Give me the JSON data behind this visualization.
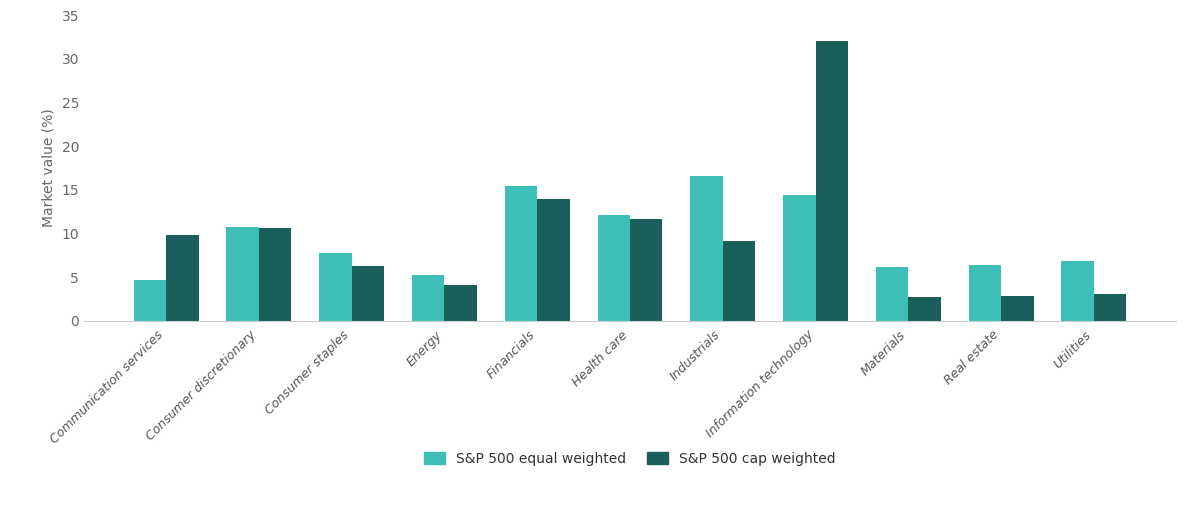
{
  "categories": [
    "Communication services",
    "Consumer discretionary",
    "Consumer staples",
    "Energy",
    "Financials",
    "Health care",
    "Industrials",
    "Information technology",
    "Materials",
    "Real estate",
    "Utilities"
  ],
  "equal_weighted": [
    4.7,
    10.7,
    7.8,
    5.2,
    15.4,
    12.1,
    16.6,
    14.4,
    6.2,
    6.4,
    6.8
  ],
  "cap_weighted": [
    9.8,
    10.6,
    6.3,
    4.1,
    13.9,
    11.7,
    9.1,
    32.1,
    2.7,
    2.8,
    3.1
  ],
  "equal_color": "#3dbfb8",
  "cap_color": "#1a5f5a",
  "ylabel": "Market value (%)",
  "legend_equal": "S&P 500 equal weighted",
  "legend_cap": "S&P 500 cap weighted",
  "ylim": [
    0,
    35
  ],
  "yticks": [
    0,
    5,
    10,
    15,
    20,
    25,
    30,
    35
  ],
  "background_color": "#ffffff",
  "bar_width": 0.35,
  "label_fontsize": 9.0,
  "ylabel_fontsize": 10,
  "legend_fontsize": 10,
  "tick_fontsize": 10
}
